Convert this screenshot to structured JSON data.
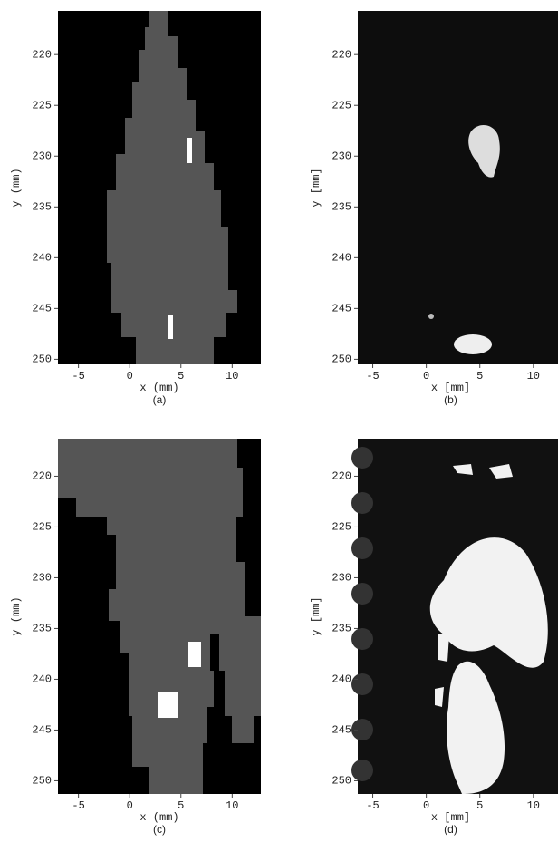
{
  "chart_data": [
    {
      "type": "image",
      "caption": "(a)",
      "xlabel": "x  (mm)",
      "ylabel": "y  (mm)",
      "xlim": [
        -7,
        12.8
      ],
      "ylim": [
        250.5,
        215.7
      ],
      "xticks": [
        -5,
        0,
        5,
        10
      ],
      "yticks": [
        220,
        225,
        230,
        235,
        240,
        245,
        250
      ]
    },
    {
      "type": "image",
      "caption": "(b)",
      "xlabel": "x [mm]",
      "ylabel": "y [mm]",
      "xlim": [
        -6.4,
        12.3
      ],
      "ylim": [
        250.5,
        215.7
      ],
      "xticks": [
        -5,
        0,
        5,
        10
      ],
      "yticks": [
        220,
        225,
        230,
        235,
        240,
        245,
        250
      ]
    },
    {
      "type": "image",
      "caption": "(c)",
      "xlabel": "x  (mm)",
      "ylabel": "y  (mm)",
      "xlim": [
        -7,
        12.8
      ],
      "ylim": [
        251.3,
        216.3
      ],
      "xticks": [
        -5,
        0,
        5,
        10
      ],
      "yticks": [
        220,
        225,
        230,
        235,
        240,
        245,
        250
      ]
    },
    {
      "type": "image",
      "caption": "(d)",
      "xlabel": "x [mm]",
      "ylabel": "y [mm]",
      "xlim": [
        -6.4,
        12.3
      ],
      "ylim": [
        251.3,
        216.3
      ],
      "xticks": [
        -5,
        0,
        5,
        10
      ],
      "yticks": [
        220,
        225,
        230,
        235,
        240,
        245,
        250
      ]
    }
  ]
}
